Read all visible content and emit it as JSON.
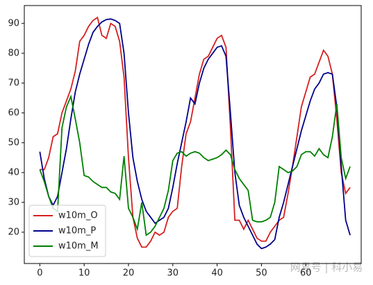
{
  "chart_data": {
    "type": "line",
    "x": [
      0,
      1,
      2,
      3,
      4,
      5,
      6,
      7,
      8,
      9,
      10,
      11,
      12,
      13,
      14,
      15,
      16,
      17,
      18,
      19,
      20,
      21,
      22,
      23,
      24,
      25,
      26,
      27,
      28,
      29,
      30,
      31,
      32,
      33,
      34,
      35,
      36,
      37,
      38,
      39,
      40,
      41,
      42,
      43,
      44,
      45,
      46,
      47,
      48,
      49,
      50,
      51,
      52,
      53,
      54,
      55,
      56,
      57,
      58,
      59,
      60,
      61,
      62,
      63,
      64,
      65,
      66,
      67,
      68,
      69,
      70
    ],
    "series": [
      {
        "name": "w10m_O",
        "color": "#d42020",
        "values": [
          41,
          41,
          45,
          52,
          53,
          60,
          64,
          68,
          74,
          84,
          86,
          89,
          91,
          92,
          86,
          85,
          90,
          89,
          84,
          72,
          45,
          25,
          18,
          15,
          15,
          17,
          20,
          19,
          20,
          25,
          27,
          28,
          42,
          53,
          57,
          65,
          73,
          78,
          79,
          82,
          85,
          86,
          82,
          55,
          24,
          24,
          21,
          24,
          21,
          18,
          17,
          17,
          20,
          22,
          24,
          25,
          33,
          42,
          52,
          62,
          67,
          72,
          73,
          77,
          81,
          79,
          73,
          58,
          40,
          33,
          35
        ]
      },
      {
        "name": "w10m_P",
        "color": "#00008b",
        "values": [
          47,
          38,
          32,
          29,
          32,
          40,
          48,
          58,
          67,
          73,
          78,
          83,
          87,
          89,
          90.5,
          91.3,
          91.5,
          91,
          90,
          80,
          60,
          45,
          37,
          31,
          27,
          25,
          23,
          24,
          25,
          28,
          35,
          43,
          50,
          57,
          65,
          63,
          70,
          75,
          78,
          80,
          82,
          82.5,
          79,
          60,
          40,
          29,
          25,
          22,
          19,
          16,
          14.5,
          15,
          16,
          17.5,
          25,
          30,
          36,
          42,
          48,
          54,
          59,
          64,
          68,
          70,
          73,
          73.5,
          73,
          62,
          42,
          24,
          19
        ]
      },
      {
        "name": "w10m_M",
        "color": "#007f00",
        "values": [
          41,
          37,
          32,
          28,
          27,
          55,
          62,
          65.5,
          58,
          50,
          39,
          38.5,
          37,
          36,
          35,
          35,
          33.5,
          33,
          31,
          45.5,
          28,
          25,
          21,
          30,
          19,
          20,
          22,
          25,
          28,
          34,
          44,
          46.5,
          47,
          45.5,
          46.5,
          47,
          46.5,
          45,
          44,
          44.5,
          45,
          46,
          47.5,
          46,
          41,
          38,
          36,
          34,
          24,
          23.5,
          23.5,
          24,
          25,
          30,
          42,
          41,
          40,
          40.5,
          42,
          46,
          47,
          47,
          45.5,
          48,
          46,
          45,
          52,
          63,
          45,
          38,
          42
        ]
      }
    ],
    "xlim": [
      -3.5,
      72.5
    ],
    "ylim": [
      9.5,
      96
    ],
    "xticks": [
      0,
      10,
      20,
      30,
      40,
      50,
      60
    ],
    "yticks": [
      20,
      30,
      40,
      50,
      60,
      70,
      80,
      90
    ],
    "legend": "lower left",
    "watermark": "网易号 | 科小易"
  }
}
